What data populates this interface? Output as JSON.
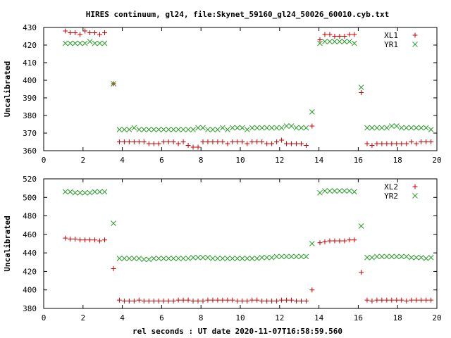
{
  "title": "HIRES continuum, gl24, file:Skynet_59160_gl24_50026_60010.cyb.txt",
  "xlabel": "rel seconds : UT date 2020-11-07T16:58:59.560",
  "colors": {
    "plus_series": "#cc0000",
    "x_series": "#2a9d2a"
  },
  "chart_data": [
    {
      "type": "scatter",
      "ylabel": "Uncalibrated",
      "xlim": [
        0,
        20
      ],
      "ylim": [
        360,
        430
      ],
      "x_ticks": [
        0,
        2,
        4,
        6,
        8,
        10,
        12,
        14,
        16,
        18,
        20
      ],
      "y_ticks": [
        360,
        370,
        380,
        390,
        400,
        410,
        420,
        430
      ],
      "legend_position": "top-right",
      "series": [
        {
          "name": "XL1",
          "marker": "plus",
          "x": [
            1.1,
            1.35,
            1.6,
            1.85,
            2.1,
            2.35,
            2.6,
            2.85,
            3.1,
            3.55,
            3.85,
            4.1,
            4.35,
            4.6,
            4.85,
            5.1,
            5.35,
            5.6,
            5.85,
            6.1,
            6.35,
            6.6,
            6.85,
            7.1,
            7.35,
            7.6,
            7.85,
            8.1,
            8.35,
            8.6,
            8.85,
            9.1,
            9.35,
            9.6,
            9.85,
            10.1,
            10.35,
            10.6,
            10.85,
            11.1,
            11.35,
            11.6,
            11.85,
            12.1,
            12.35,
            12.6,
            12.85,
            13.1,
            13.35,
            13.65,
            14.05,
            14.3,
            14.55,
            14.8,
            15.05,
            15.3,
            15.55,
            15.8,
            16.15,
            16.45,
            16.7,
            16.95,
            17.2,
            17.45,
            17.7,
            17.95,
            18.2,
            18.45,
            18.7,
            18.95,
            19.2,
            19.45,
            19.7
          ],
          "y": [
            428,
            427,
            427,
            426,
            428,
            427,
            427,
            426,
            427,
            398,
            365,
            365,
            365,
            365,
            365,
            365,
            364,
            364,
            364,
            365,
            365,
            365,
            364,
            365,
            363,
            362,
            362,
            365,
            365,
            365,
            365,
            365,
            364,
            365,
            365,
            365,
            364,
            365,
            365,
            365,
            364,
            364,
            365,
            366,
            364,
            364,
            364,
            364,
            363,
            374,
            423,
            426,
            426,
            425,
            425,
            425,
            426,
            426,
            393,
            364,
            363,
            364,
            364,
            364,
            364,
            364,
            364,
            364,
            365,
            364,
            365,
            365,
            365
          ]
        },
        {
          "name": "YR1",
          "marker": "x",
          "x": [
            1.1,
            1.35,
            1.6,
            1.85,
            2.1,
            2.35,
            2.6,
            2.85,
            3.1,
            3.55,
            3.85,
            4.1,
            4.35,
            4.6,
            4.85,
            5.1,
            5.35,
            5.6,
            5.85,
            6.1,
            6.35,
            6.6,
            6.85,
            7.1,
            7.35,
            7.6,
            7.85,
            8.1,
            8.35,
            8.6,
            8.85,
            9.1,
            9.35,
            9.6,
            9.85,
            10.1,
            10.35,
            10.6,
            10.85,
            11.1,
            11.35,
            11.6,
            11.85,
            12.1,
            12.35,
            12.6,
            12.85,
            13.1,
            13.35,
            13.65,
            14.05,
            14.3,
            14.55,
            14.8,
            15.05,
            15.3,
            15.55,
            15.8,
            16.15,
            16.45,
            16.7,
            16.95,
            17.2,
            17.45,
            17.7,
            17.95,
            18.2,
            18.45,
            18.7,
            18.95,
            19.2,
            19.45,
            19.7
          ],
          "y": [
            421,
            421,
            421,
            421,
            421,
            422,
            421,
            421,
            421,
            398,
            372,
            372,
            372,
            373,
            372,
            372,
            372,
            372,
            372,
            372,
            372,
            372,
            372,
            372,
            372,
            372,
            373,
            373,
            372,
            372,
            372,
            373,
            372,
            373,
            373,
            373,
            372,
            373,
            373,
            373,
            373,
            373,
            373,
            373,
            374,
            374,
            373,
            373,
            373,
            382,
            421,
            422,
            422,
            422,
            422,
            422,
            422,
            421,
            396,
            373,
            373,
            373,
            373,
            373,
            374,
            374,
            373,
            373,
            373,
            373,
            373,
            373,
            372
          ]
        }
      ]
    },
    {
      "type": "scatter",
      "ylabel": "Uncalibrated",
      "xlim": [
        0,
        20
      ],
      "ylim": [
        380,
        520
      ],
      "x_ticks": [
        0,
        2,
        4,
        6,
        8,
        10,
        12,
        14,
        16,
        18,
        20
      ],
      "y_ticks": [
        380,
        400,
        420,
        440,
        460,
        480,
        500,
        520
      ],
      "legend_position": "top-right",
      "series": [
        {
          "name": "XL2",
          "marker": "plus",
          "x": [
            1.1,
            1.35,
            1.6,
            1.85,
            2.1,
            2.35,
            2.6,
            2.85,
            3.1,
            3.55,
            3.85,
            4.1,
            4.35,
            4.6,
            4.85,
            5.1,
            5.35,
            5.6,
            5.85,
            6.1,
            6.35,
            6.6,
            6.85,
            7.1,
            7.35,
            7.6,
            7.85,
            8.1,
            8.35,
            8.6,
            8.85,
            9.1,
            9.35,
            9.6,
            9.85,
            10.1,
            10.35,
            10.6,
            10.85,
            11.1,
            11.35,
            11.6,
            11.85,
            12.1,
            12.35,
            12.6,
            12.85,
            13.1,
            13.35,
            13.65,
            14.05,
            14.3,
            14.55,
            14.8,
            15.05,
            15.3,
            15.55,
            15.8,
            16.15,
            16.45,
            16.7,
            16.95,
            17.2,
            17.45,
            17.7,
            17.95,
            18.2,
            18.45,
            18.7,
            18.95,
            19.2,
            19.45,
            19.7
          ],
          "y": [
            456,
            455,
            455,
            454,
            454,
            454,
            454,
            453,
            454,
            423,
            389,
            388,
            388,
            388,
            389,
            388,
            388,
            388,
            388,
            388,
            388,
            388,
            389,
            389,
            389,
            388,
            388,
            388,
            389,
            389,
            389,
            389,
            389,
            389,
            388,
            388,
            388,
            389,
            389,
            388,
            388,
            388,
            388,
            389,
            389,
            389,
            388,
            388,
            388,
            400,
            451,
            452,
            453,
            453,
            453,
            453,
            454,
            454,
            419,
            389,
            388,
            389,
            389,
            389,
            389,
            389,
            389,
            388,
            389,
            389,
            389,
            389,
            389
          ]
        },
        {
          "name": "YR2",
          "marker": "x",
          "x": [
            1.1,
            1.35,
            1.6,
            1.85,
            2.1,
            2.35,
            2.6,
            2.85,
            3.1,
            3.55,
            3.85,
            4.1,
            4.35,
            4.6,
            4.85,
            5.1,
            5.35,
            5.6,
            5.85,
            6.1,
            6.35,
            6.6,
            6.85,
            7.1,
            7.35,
            7.6,
            7.85,
            8.1,
            8.35,
            8.6,
            8.85,
            9.1,
            9.35,
            9.6,
            9.85,
            10.1,
            10.35,
            10.6,
            10.85,
            11.1,
            11.35,
            11.6,
            11.85,
            12.1,
            12.35,
            12.6,
            12.85,
            13.1,
            13.35,
            13.65,
            14.05,
            14.3,
            14.55,
            14.8,
            15.05,
            15.3,
            15.55,
            15.8,
            16.15,
            16.45,
            16.7,
            16.95,
            17.2,
            17.45,
            17.7,
            17.95,
            18.2,
            18.45,
            18.7,
            18.95,
            19.2,
            19.45,
            19.7
          ],
          "y": [
            506,
            506,
            505,
            505,
            505,
            505,
            506,
            506,
            506,
            472,
            434,
            434,
            434,
            434,
            434,
            433,
            433,
            434,
            434,
            434,
            434,
            434,
            434,
            434,
            434,
            435,
            435,
            435,
            435,
            434,
            434,
            434,
            434,
            434,
            434,
            434,
            434,
            434,
            434,
            435,
            435,
            435,
            436,
            436,
            436,
            436,
            436,
            436,
            436,
            450,
            505,
            507,
            507,
            507,
            507,
            507,
            507,
            506,
            469,
            435,
            435,
            436,
            436,
            436,
            436,
            436,
            436,
            436,
            435,
            435,
            435,
            434,
            435
          ]
        }
      ]
    }
  ]
}
